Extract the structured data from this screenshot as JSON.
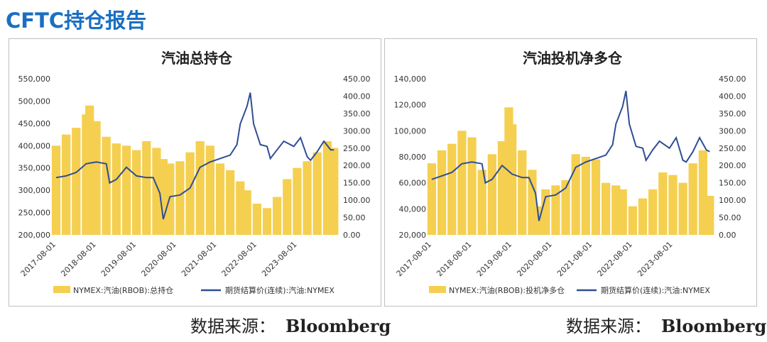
{
  "page": {
    "title": "CFTC持仓报告"
  },
  "sources": [
    {
      "label": "数据来源：",
      "value": "Bloomberg"
    },
    {
      "label": "数据来源：",
      "value": "Bloomberg"
    }
  ],
  "colors": {
    "bars": "#f5cf4f",
    "line": "#2e4e96",
    "title": "#1a6fc2"
  },
  "chart_data": [
    {
      "type": "bar",
      "title": "汽油总持仓",
      "legend_position": "bottom",
      "grid": false,
      "x_tick_labels": [
        "2017-08-01",
        "2018-08-01",
        "2019-08-01",
        "2020-08-01",
        "2021-08-01",
        "2022-08-01",
        "2023-08-01"
      ],
      "x_range": [
        "2017-08-01",
        "2024-08-01"
      ],
      "y_left": {
        "min": 200000,
        "max": 550000,
        "ticks": [
          "200,000",
          "250,000",
          "300,000",
          "350,000",
          "400,000",
          "450,000",
          "500,000",
          "550,000"
        ]
      },
      "y_right": {
        "min": 0,
        "max": 450,
        "ticks": [
          "0.00",
          "50.00",
          "100.00",
          "150.00",
          "200.00",
          "250.00",
          "300.00",
          "350.00",
          "400.00",
          "450.00"
        ]
      },
      "series": [
        {
          "name": "NYMEX:汽油(RBOB):总持仓",
          "kind": "bar",
          "axis": "left",
          "points": [
            [
              "2017-08",
              400000
            ],
            [
              "2017-11",
              425000
            ],
            [
              "2018-02",
              440000
            ],
            [
              "2018-05",
              470000
            ],
            [
              "2018-06",
              490000
            ],
            [
              "2018-08",
              455000
            ],
            [
              "2018-11",
              420000
            ],
            [
              "2019-02",
              405000
            ],
            [
              "2019-05",
              400000
            ],
            [
              "2019-08",
              390000
            ],
            [
              "2019-11",
              410000
            ],
            [
              "2020-02",
              395000
            ],
            [
              "2020-04",
              370000
            ],
            [
              "2020-06",
              360000
            ],
            [
              "2020-09",
              365000
            ],
            [
              "2020-12",
              385000
            ],
            [
              "2021-03",
              410000
            ],
            [
              "2021-06",
              400000
            ],
            [
              "2021-09",
              360000
            ],
            [
              "2021-12",
              345000
            ],
            [
              "2022-03",
              320000
            ],
            [
              "2022-05",
              300000
            ],
            [
              "2022-08",
              270000
            ],
            [
              "2022-11",
              260000
            ],
            [
              "2023-02",
              285000
            ],
            [
              "2023-05",
              325000
            ],
            [
              "2023-08",
              350000
            ],
            [
              "2023-11",
              365000
            ],
            [
              "2024-02",
              385000
            ],
            [
              "2024-05",
              410000
            ],
            [
              "2024-07",
              395000
            ]
          ]
        },
        {
          "name": "期货结算价(连续):汽油:NYMEX",
          "kind": "line",
          "axis": "right",
          "points": [
            [
              "2017-08",
              165
            ],
            [
              "2017-11",
              170
            ],
            [
              "2018-02",
              180
            ],
            [
              "2018-05",
              205
            ],
            [
              "2018-08",
              210
            ],
            [
              "2018-11",
              205
            ],
            [
              "2018-12",
              150
            ],
            [
              "2019-02",
              160
            ],
            [
              "2019-05",
              195
            ],
            [
              "2019-08",
              170
            ],
            [
              "2019-11",
              165
            ],
            [
              "2020-01",
              165
            ],
            [
              "2020-03",
              120
            ],
            [
              "2020-04",
              45
            ],
            [
              "2020-06",
              110
            ],
            [
              "2020-09",
              115
            ],
            [
              "2020-12",
              135
            ],
            [
              "2021-03",
              195
            ],
            [
              "2021-06",
              210
            ],
            [
              "2021-09",
              220
            ],
            [
              "2021-12",
              230
            ],
            [
              "2022-02",
              260
            ],
            [
              "2022-03",
              320
            ],
            [
              "2022-05",
              370
            ],
            [
              "2022-06",
              410
            ],
            [
              "2022-07",
              320
            ],
            [
              "2022-09",
              260
            ],
            [
              "2022-11",
              255
            ],
            [
              "2022-12",
              220
            ],
            [
              "2023-02",
              245
            ],
            [
              "2023-04",
              270
            ],
            [
              "2023-07",
              255
            ],
            [
              "2023-09",
              280
            ],
            [
              "2023-11",
              225
            ],
            [
              "2023-12",
              215
            ],
            [
              "2024-02",
              240
            ],
            [
              "2024-04",
              270
            ],
            [
              "2024-06",
              245
            ],
            [
              "2024-07",
              245
            ]
          ]
        }
      ]
    },
    {
      "type": "bar",
      "title": "汽油投机净多仓",
      "legend_position": "bottom",
      "grid": false,
      "x_tick_labels": [
        "2017-08-01",
        "2018-08-01",
        "2019-08-01",
        "2020-08-01",
        "2021-08-01",
        "2022-08-01",
        "2023-08-01"
      ],
      "x_range": [
        "2017-08-01",
        "2024-08-01"
      ],
      "y_left": {
        "min": 20000,
        "max": 140000,
        "ticks": [
          "20,000",
          "40,000",
          "60,000",
          "80,000",
          "100,000",
          "120,000",
          "140,000"
        ]
      },
      "y_right": {
        "min": 0,
        "max": 450,
        "ticks": [
          "0.00",
          "50.00",
          "100.00",
          "150.00",
          "200.00",
          "250.00",
          "300.00",
          "350.00",
          "400.00",
          "450.00"
        ]
      },
      "series": [
        {
          "name": "NYMEX:汽油(RBOB):投机净多仓",
          "kind": "bar",
          "axis": "left",
          "points": [
            [
              "2017-08",
              75000
            ],
            [
              "2017-11",
              85000
            ],
            [
              "2018-02",
              90000
            ],
            [
              "2018-05",
              100000
            ],
            [
              "2018-08",
              95000
            ],
            [
              "2018-11",
              70000
            ],
            [
              "2019-02",
              82000
            ],
            [
              "2019-05",
              92000
            ],
            [
              "2019-07",
              118000
            ],
            [
              "2019-08",
              105000
            ],
            [
              "2019-11",
              85000
            ],
            [
              "2020-02",
              70000
            ],
            [
              "2020-04",
              42000
            ],
            [
              "2020-06",
              55000
            ],
            [
              "2020-09",
              58000
            ],
            [
              "2020-12",
              62000
            ],
            [
              "2021-03",
              82000
            ],
            [
              "2021-06",
              80000
            ],
            [
              "2021-09",
              78000
            ],
            [
              "2021-12",
              60000
            ],
            [
              "2022-03",
              58000
            ],
            [
              "2022-05",
              55000
            ],
            [
              "2022-08",
              42000
            ],
            [
              "2022-11",
              48000
            ],
            [
              "2023-02",
              55000
            ],
            [
              "2023-05",
              68000
            ],
            [
              "2023-08",
              66000
            ],
            [
              "2023-11",
              60000
            ],
            [
              "2024-02",
              75000
            ],
            [
              "2024-05",
              85000
            ],
            [
              "2024-07",
              50000
            ]
          ]
        },
        {
          "name": "期货结算价(连续):汽油:NYMEX",
          "kind": "line",
          "axis": "right",
          "points": [
            [
              "2017-08",
              160
            ],
            [
              "2017-11",
              170
            ],
            [
              "2018-02",
              180
            ],
            [
              "2018-05",
              205
            ],
            [
              "2018-08",
              210
            ],
            [
              "2018-11",
              205
            ],
            [
              "2018-12",
              150
            ],
            [
              "2019-02",
              160
            ],
            [
              "2019-05",
              200
            ],
            [
              "2019-08",
              175
            ],
            [
              "2019-11",
              165
            ],
            [
              "2020-01",
              165
            ],
            [
              "2020-03",
              120
            ],
            [
              "2020-04",
              40
            ],
            [
              "2020-06",
              110
            ],
            [
              "2020-09",
              115
            ],
            [
              "2020-12",
              135
            ],
            [
              "2021-03",
              195
            ],
            [
              "2021-06",
              210
            ],
            [
              "2021-09",
              220
            ],
            [
              "2021-12",
              230
            ],
            [
              "2022-02",
              260
            ],
            [
              "2022-03",
              320
            ],
            [
              "2022-05",
              370
            ],
            [
              "2022-06",
              415
            ],
            [
              "2022-07",
              320
            ],
            [
              "2022-09",
              255
            ],
            [
              "2022-11",
              250
            ],
            [
              "2022-12",
              215
            ],
            [
              "2023-02",
              245
            ],
            [
              "2023-04",
              270
            ],
            [
              "2023-07",
              250
            ],
            [
              "2023-09",
              280
            ],
            [
              "2023-11",
              215
            ],
            [
              "2023-12",
              210
            ],
            [
              "2024-02",
              240
            ],
            [
              "2024-04",
              280
            ],
            [
              "2024-06",
              245
            ],
            [
              "2024-07",
              240
            ]
          ]
        }
      ]
    }
  ]
}
